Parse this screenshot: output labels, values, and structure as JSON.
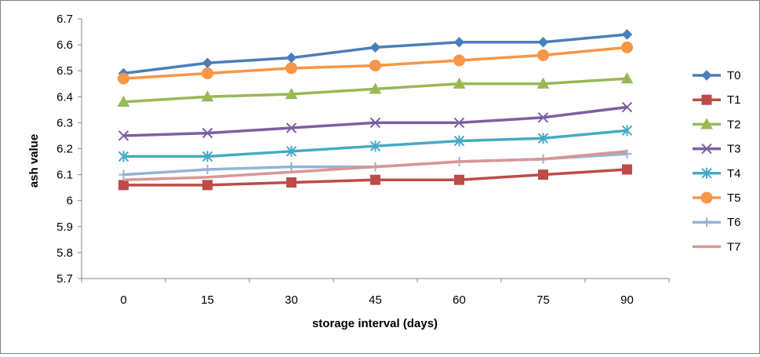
{
  "chart_data": {
    "type": "line",
    "title": "",
    "xlabel": "storage interval (days)",
    "ylabel": "ash value",
    "x": [
      0,
      15,
      30,
      45,
      60,
      75,
      90
    ],
    "ylim": [
      5.7,
      6.7
    ],
    "yticks": [
      "5.7",
      "5.8",
      "5.9",
      "6",
      "6.1",
      "6.2",
      "6.3",
      "6.4",
      "6.5",
      "6.6",
      "6.7"
    ],
    "xticks": [
      "0",
      "15",
      "30",
      "45",
      "60",
      "75",
      "90"
    ],
    "grid": false,
    "legend": "right",
    "series": [
      {
        "name": "T0",
        "color": "#4a7ebb",
        "marker": "diamond",
        "values": [
          6.49,
          6.53,
          6.55,
          6.59,
          6.61,
          6.61,
          6.64
        ]
      },
      {
        "name": "T1",
        "color": "#be4b48",
        "marker": "square",
        "values": [
          6.06,
          6.06,
          6.07,
          6.08,
          6.08,
          6.1,
          6.12
        ]
      },
      {
        "name": "T2",
        "color": "#98b954",
        "marker": "triangle",
        "values": [
          6.38,
          6.4,
          6.41,
          6.43,
          6.45,
          6.45,
          6.47
        ]
      },
      {
        "name": "T3",
        "color": "#7d60a0",
        "marker": "x",
        "values": [
          6.25,
          6.26,
          6.28,
          6.3,
          6.3,
          6.32,
          6.36
        ]
      },
      {
        "name": "T4",
        "color": "#46aac5",
        "marker": "star",
        "values": [
          6.17,
          6.17,
          6.19,
          6.21,
          6.23,
          6.24,
          6.27
        ]
      },
      {
        "name": "T5",
        "color": "#f79646",
        "marker": "circle",
        "values": [
          6.47,
          6.49,
          6.51,
          6.52,
          6.54,
          6.56,
          6.59
        ]
      },
      {
        "name": "T6",
        "color": "#95b3d7",
        "marker": "plus",
        "values": [
          6.1,
          6.12,
          6.13,
          6.13,
          6.15,
          6.16,
          6.18
        ]
      },
      {
        "name": "T7",
        "color": "#d99694",
        "marker": "none",
        "values": [
          6.08,
          6.09,
          6.11,
          6.13,
          6.15,
          6.16,
          6.19
        ]
      }
    ]
  }
}
